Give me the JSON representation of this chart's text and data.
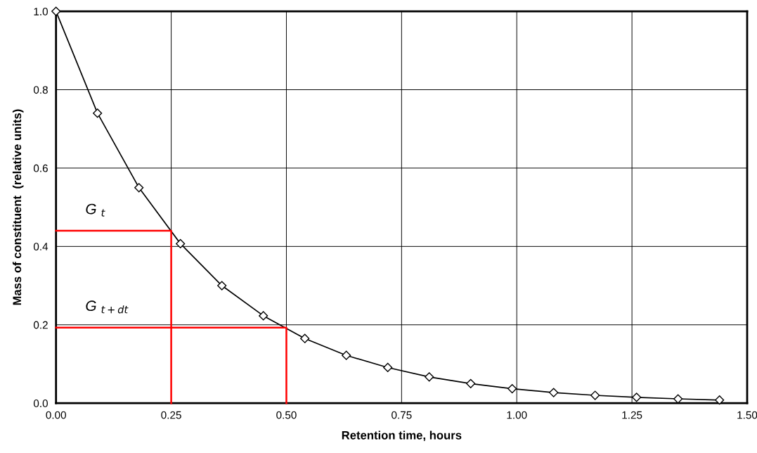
{
  "chart_data": {
    "type": "line",
    "xlabel": "Retention time, hours",
    "ylabel": "Mass of constituent  (relative units)",
    "x": [
      0,
      0.09,
      0.18,
      0.27,
      0.36,
      0.45,
      0.54,
      0.63,
      0.72,
      0.81,
      0.9,
      0.99,
      1.08,
      1.17,
      1.26,
      1.35,
      1.44
    ],
    "series": [
      {
        "color": "#000000",
        "values": [
          1.0,
          0.74,
          0.55,
          0.407,
          0.3,
          0.223,
          0.165,
          0.122,
          0.091,
          0.067,
          0.05,
          0.037,
          0.027,
          0.02,
          0.015,
          0.011,
          0.008
        ]
      },
      {
        "type": "line",
        "x": [
          0.25,
          0.25,
          0
        ],
        "color": "#ff0000",
        "marker": "none",
        "values": [
          0,
          0.44,
          0.44
        ]
      },
      {
        "type": "line",
        "x": [
          0.5,
          0.5,
          0
        ],
        "color": "#ff0000",
        "marker": "none",
        "values": [
          0,
          0.193,
          0.193
        ]
      }
    ],
    "marker": "diamond",
    "grid": true,
    "xlim": [
      0,
      1.5
    ],
    "ylim": [
      0,
      1.0
    ],
    "xticks": [
      {
        "value": 0,
        "label": "0.00"
      },
      {
        "value": 0.25,
        "label": "0.25"
      },
      {
        "value": 0.5,
        "label": "0.50"
      },
      {
        "value": 0.75,
        "label": "0.75"
      },
      {
        "value": 1.0,
        "label": "1.00"
      },
      {
        "value": 1.25,
        "label": "1.25"
      },
      {
        "value": 1.5,
        "label": "1.50"
      }
    ],
    "yticks": [
      {
        "value": 0,
        "label": "0.0"
      },
      {
        "value": 0.2,
        "label": "0.2"
      },
      {
        "value": 0.4,
        "label": "0.4"
      },
      {
        "value": 0.6,
        "label": "0.6"
      },
      {
        "value": 0.8,
        "label": "0.8"
      },
      {
        "value": 1.0,
        "label": "1.0"
      }
    ],
    "annotations": [
      {
        "text": "G $_{t}$",
        "x": 0,
        "y": 0.44
      },
      {
        "text": "G $_{t+dt}$",
        "x": 0,
        "y": 0.193
      }
    ]
  }
}
